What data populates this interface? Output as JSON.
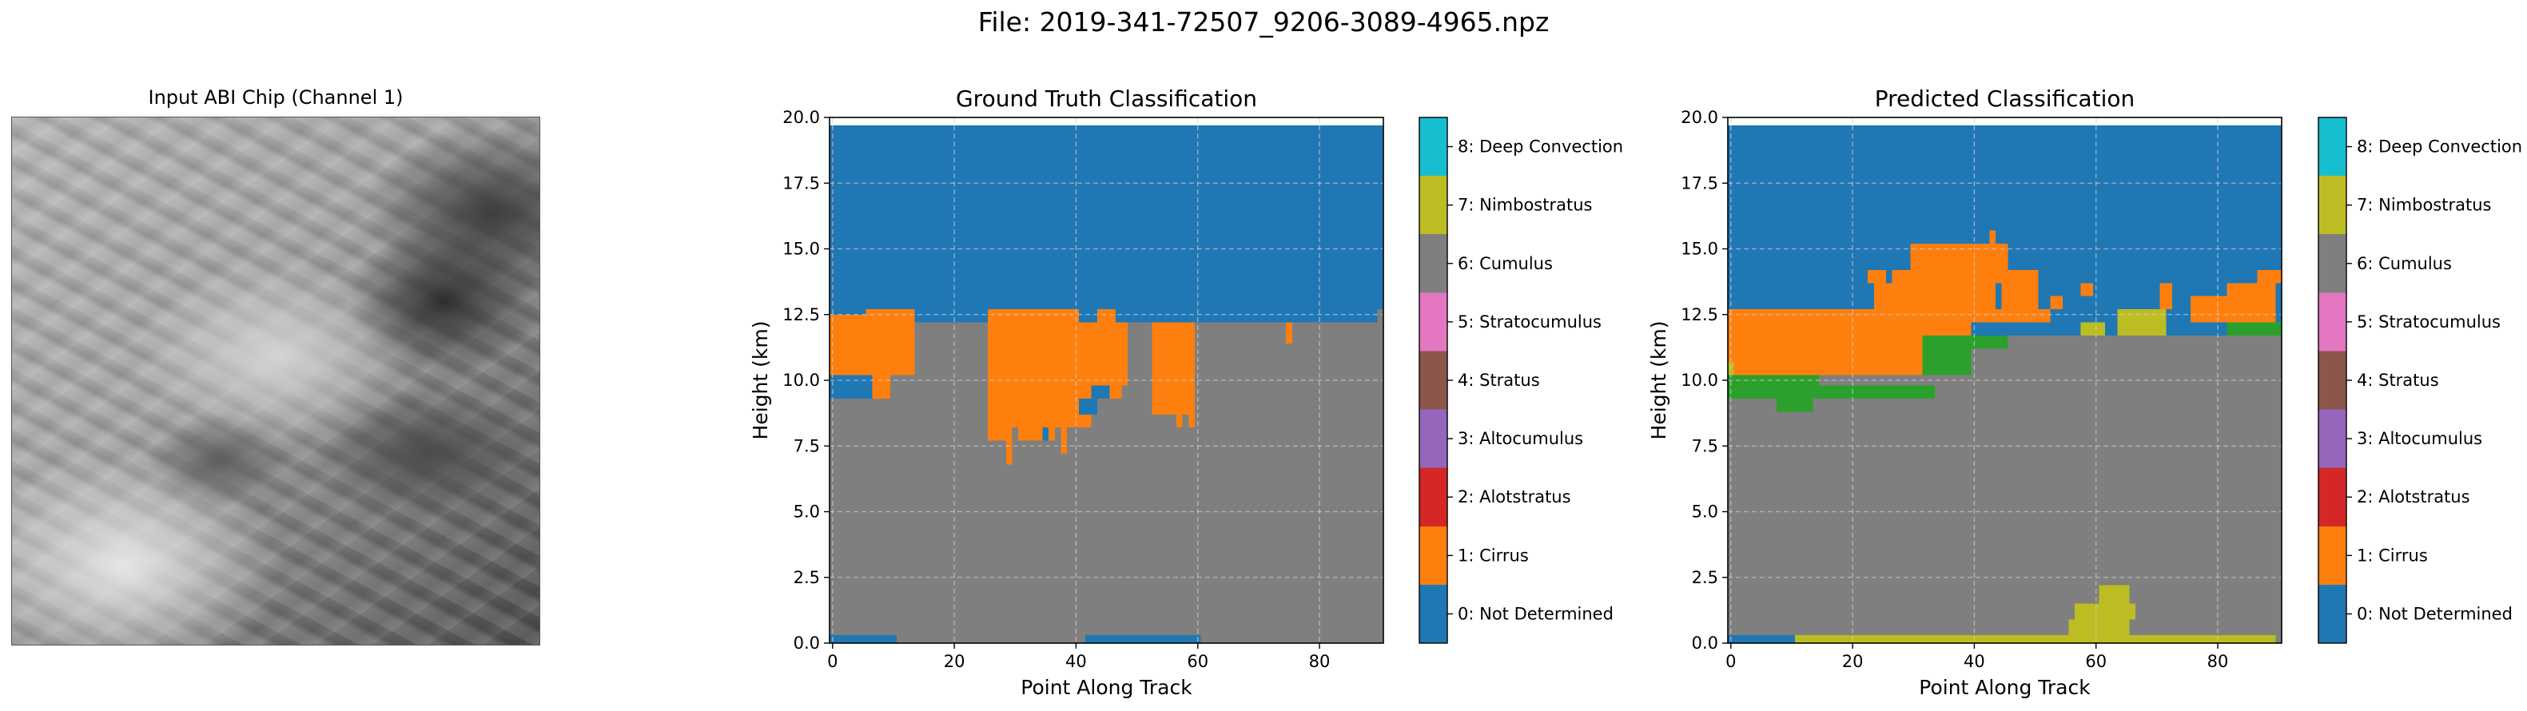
{
  "figure": {
    "suptitle": "File: 2019-341-72507_9206-3089-4965.npz",
    "image_panel": {
      "title": "Input ABI Chip (Channel 1)"
    }
  },
  "chart_data": [
    {
      "type": "heatmap",
      "title": "Ground Truth Classification",
      "xlabel": "Point Along Track",
      "ylabel": "Height (km)",
      "xlim": [
        -0.5,
        90.5
      ],
      "ylim": [
        0,
        20
      ],
      "xticks": [
        0,
        20,
        40,
        60,
        80
      ],
      "yticks": [
        0.0,
        2.5,
        5.0,
        7.5,
        10.0,
        12.5,
        15.0,
        17.5,
        20.0
      ],
      "grid": true,
      "colorbar": [
        "0: Not Determined",
        "1: Cirrus",
        "2: Alotstratus",
        "3: Altocumulus",
        "4: Stratus",
        "5: Stratocumulus",
        "6: Cumulus",
        "7: Nimbostratus",
        "8: Deep Convection"
      ],
      "class_colors": [
        "#1f77b4",
        "#ff7f0e",
        "#2ca02c",
        "#d62728",
        "#9467bd",
        "#8c564b",
        "#e377c2",
        "#7f7f7f",
        "#bcbd22",
        "#17becf"
      ],
      "background_class": 7,
      "regions": [
        {
          "class": 0,
          "x0": 0,
          "x1": 91,
          "y0": 12.2,
          "y1": 19.7
        },
        {
          "class": 1,
          "x0": 0,
          "x1": 6,
          "y0": 12.2,
          "y1": 12.5
        },
        {
          "class": 1,
          "x0": 6,
          "x1": 14,
          "y0": 12.2,
          "y1": 12.7
        },
        {
          "class": 0,
          "x0": 29,
          "x1": 32,
          "y0": 12.2,
          "y1": 12.5
        },
        {
          "class": 0,
          "x0": 42,
          "x1": 44,
          "y0": 12.2,
          "y1": 12.5
        },
        {
          "class": 1,
          "x0": 26,
          "x1": 41,
          "y0": 12.2,
          "y1": 12.7
        },
        {
          "class": 1,
          "x0": 44,
          "x1": 47,
          "y0": 12.2,
          "y1": 12.7
        },
        {
          "class": 7,
          "x0": 90,
          "x1": 91,
          "y0": 12.2,
          "y1": 12.7
        },
        {
          "class": 1,
          "x0": 0,
          "x1": 14,
          "y0": 10.2,
          "y1": 12.2
        },
        {
          "class": 1,
          "x0": 0,
          "x1": 7,
          "y0": 10.2,
          "y1": 10.3
        },
        {
          "class": 0,
          "x0": 0,
          "x1": 7,
          "y0": 9.3,
          "y1": 10.2
        },
        {
          "class": 1,
          "x0": 7,
          "x1": 10,
          "y0": 9.3,
          "y1": 10.2
        },
        {
          "class": 1,
          "x0": 26,
          "x1": 49,
          "y0": 9.8,
          "y1": 12.2
        },
        {
          "class": 0,
          "x0": 43,
          "x1": 46,
          "y0": 9.3,
          "y1": 9.8
        },
        {
          "class": 1,
          "x0": 46,
          "x1": 48,
          "y0": 9.3,
          "y1": 9.8
        },
        {
          "class": 1,
          "x0": 26,
          "x1": 43,
          "y0": 8.2,
          "y1": 9.8
        },
        {
          "class": 0,
          "x0": 41,
          "x1": 44,
          "y0": 8.7,
          "y1": 9.3
        },
        {
          "class": 1,
          "x0": 26,
          "x1": 29,
          "y0": 7.7,
          "y1": 8.2
        },
        {
          "class": 1,
          "x0": 29,
          "x1": 30,
          "y0": 6.8,
          "y1": 8.2
        },
        {
          "class": 1,
          "x0": 31,
          "x1": 35,
          "y0": 7.7,
          "y1": 8.2
        },
        {
          "class": 0,
          "x0": 35,
          "x1": 36,
          "y0": 7.7,
          "y1": 8.2
        },
        {
          "class": 1,
          "x0": 36,
          "x1": 37,
          "y0": 7.7,
          "y1": 8.2
        },
        {
          "class": 1,
          "x0": 38,
          "x1": 39,
          "y0": 7.2,
          "y1": 8.2
        },
        {
          "class": 1,
          "x0": 53,
          "x1": 60,
          "y0": 8.7,
          "y1": 12.2
        },
        {
          "class": 1,
          "x0": 57,
          "x1": 58,
          "y0": 8.2,
          "y1": 8.7
        },
        {
          "class": 1,
          "x0": 59,
          "x1": 60,
          "y0": 8.2,
          "y1": 8.7
        },
        {
          "class": 1,
          "x0": 75,
          "x1": 76,
          "y0": 11.4,
          "y1": 12.2
        },
        {
          "class": 0,
          "x0": 0,
          "x1": 11,
          "y0": 0,
          "y1": 0.3
        },
        {
          "class": 0,
          "x0": 42,
          "x1": 61,
          "y0": 0,
          "y1": 0.3
        }
      ]
    },
    {
      "type": "heatmap",
      "title": "Predicted Classification",
      "xlabel": "Point Along Track",
      "ylabel": "Height (km)",
      "xlim": [
        -0.5,
        90.5
      ],
      "ylim": [
        0,
        20
      ],
      "xticks": [
        0,
        20,
        40,
        60,
        80
      ],
      "yticks": [
        0.0,
        2.5,
        5.0,
        7.5,
        10.0,
        12.5,
        15.0,
        17.5,
        20.0
      ],
      "grid": true,
      "colorbar": [
        "0: Not Determined",
        "1: Cirrus",
        "2: Alotstratus",
        "3: Altocumulus",
        "4: Stratus",
        "5: Stratocumulus",
        "6: Cumulus",
        "7: Nimbostratus",
        "8: Deep Convection"
      ],
      "class_colors": [
        "#1f77b4",
        "#ff7f0e",
        "#2ca02c",
        "#d62728",
        "#9467bd",
        "#8c564b",
        "#e377c2",
        "#7f7f7f",
        "#bcbd22",
        "#17becf"
      ],
      "background_class": 7,
      "regions": [
        {
          "class": 0,
          "x0": 0,
          "x1": 91,
          "y0": 12.2,
          "y1": 19.7
        },
        {
          "class": 0,
          "x0": 0,
          "x1": 91,
          "y0": 11.7,
          "y1": 12.2
        },
        {
          "class": 1,
          "x0": 0,
          "x1": 32,
          "y0": 10.2,
          "y1": 12.7
        },
        {
          "class": 1,
          "x0": 24,
          "x1": 44,
          "y0": 12.7,
          "y1": 13.7
        },
        {
          "class": 1,
          "x0": 27,
          "x1": 48,
          "y0": 13.7,
          "y1": 14.2
        },
        {
          "class": 1,
          "x0": 30,
          "x1": 46,
          "y0": 14.2,
          "y1": 15.2
        },
        {
          "class": 1,
          "x0": 23,
          "x1": 26,
          "y0": 13.7,
          "y1": 14.2
        },
        {
          "class": 1,
          "x0": 45,
          "x1": 51,
          "y0": 12.7,
          "y1": 14.2
        },
        {
          "class": 1,
          "x0": 43,
          "x1": 44,
          "y0": 15.2,
          "y1": 15.7
        },
        {
          "class": 1,
          "x0": 32,
          "x1": 40,
          "y0": 11.7,
          "y1": 12.7
        },
        {
          "class": 1,
          "x0": 40,
          "x1": 53,
          "y0": 12.2,
          "y1": 12.7
        },
        {
          "class": 1,
          "x0": 53,
          "x1": 55,
          "y0": 12.7,
          "y1": 13.2
        },
        {
          "class": 1,
          "x0": 58,
          "x1": 60,
          "y0": 13.2,
          "y1": 13.7
        },
        {
          "class": 1,
          "x0": 71,
          "x1": 73,
          "y0": 12.7,
          "y1": 13.7
        },
        {
          "class": 1,
          "x0": 76,
          "x1": 90,
          "y0": 12.2,
          "y1": 13.2
        },
        {
          "class": 1,
          "x0": 82,
          "x1": 90,
          "y0": 13.2,
          "y1": 13.7
        },
        {
          "class": 1,
          "x0": 87,
          "x1": 91,
          "y0": 13.7,
          "y1": 14.2
        },
        {
          "class": 2,
          "x0": 0,
          "x1": 15,
          "y0": 9.3,
          "y1": 10.2
        },
        {
          "class": 2,
          "x0": 8,
          "x1": 14,
          "y0": 8.8,
          "y1": 9.3
        },
        {
          "class": 2,
          "x0": 15,
          "x1": 34,
          "y0": 9.3,
          "y1": 9.8
        },
        {
          "class": 2,
          "x0": 32,
          "x1": 40,
          "y0": 10.2,
          "y1": 11.7
        },
        {
          "class": 2,
          "x0": 40,
          "x1": 46,
          "y0": 11.2,
          "y1": 11.7
        },
        {
          "class": 2,
          "x0": 82,
          "x1": 91,
          "y0": 11.7,
          "y1": 12.2
        },
        {
          "class": 8,
          "x0": 0,
          "x1": 1,
          "y0": 10.2,
          "y1": 10.7
        },
        {
          "class": 8,
          "x0": 58,
          "x1": 62,
          "y0": 11.7,
          "y1": 12.2
        },
        {
          "class": 8,
          "x0": 64,
          "x1": 72,
          "y0": 11.7,
          "y1": 12.7
        },
        {
          "class": 8,
          "x0": 3,
          "x1": 90,
          "y0": 0,
          "y1": 0.3
        },
        {
          "class": 0,
          "x0": 0,
          "x1": 11,
          "y0": 0,
          "y1": 0.3
        },
        {
          "class": 8,
          "x0": 56,
          "x1": 66,
          "y0": 0.3,
          "y1": 0.9
        },
        {
          "class": 8,
          "x0": 57,
          "x1": 67,
          "y0": 0.9,
          "y1": 1.5
        },
        {
          "class": 8,
          "x0": 61,
          "x1": 66,
          "y0": 1.5,
          "y1": 2.2
        }
      ]
    }
  ]
}
